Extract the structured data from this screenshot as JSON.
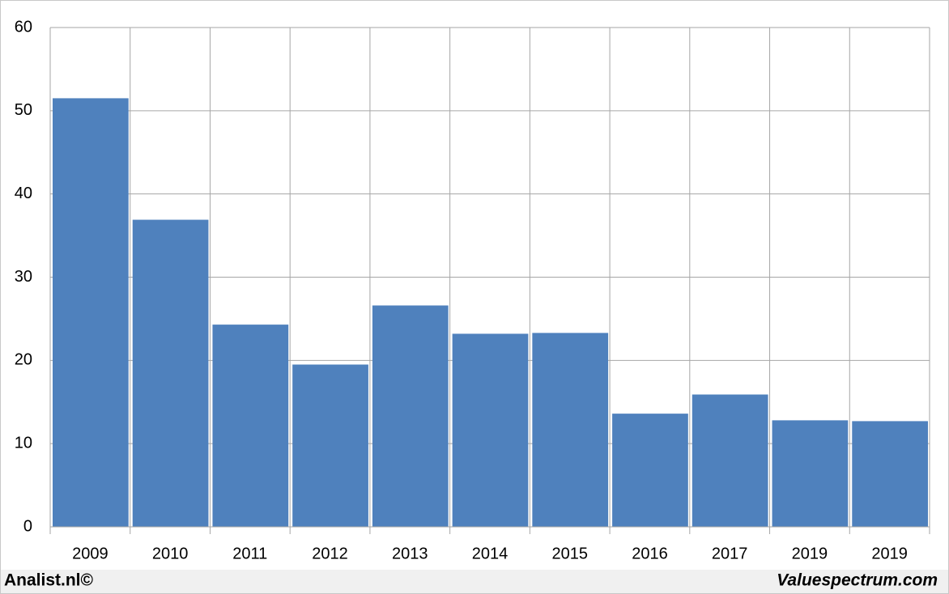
{
  "chart_data": {
    "type": "bar",
    "categories": [
      "2009",
      "2010",
      "2011",
      "2012",
      "2013",
      "2014",
      "2015",
      "2016",
      "2017",
      "2019",
      "2019"
    ],
    "values": [
      51.5,
      36.9,
      24.3,
      19.5,
      26.6,
      23.2,
      23.3,
      13.6,
      15.9,
      12.8,
      12.7
    ],
    "color": "#4f81bd",
    "ylim": [
      0,
      60
    ],
    "yticks": [
      0,
      10,
      20,
      30,
      40,
      50,
      60
    ],
    "grid": true
  },
  "footer": {
    "left": "Analist.nl©",
    "right": "Valuespectrum.com"
  }
}
